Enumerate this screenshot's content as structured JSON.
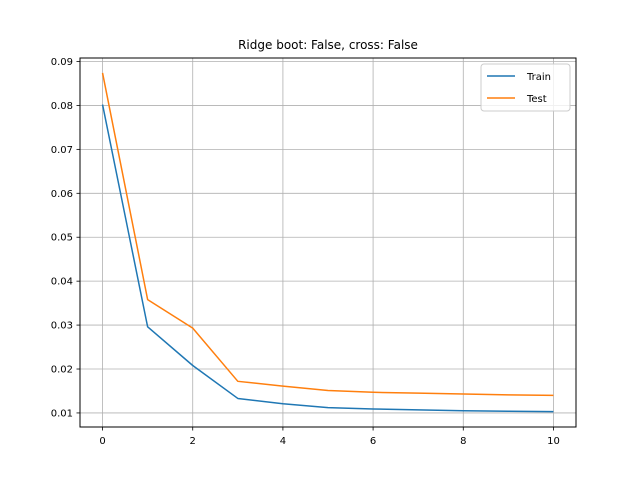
{
  "chart_data": {
    "type": "line",
    "title": "Ridge boot: False, cross: False",
    "xlabel": "",
    "ylabel": "",
    "xlim": [
      -0.5,
      10.5
    ],
    "ylim": [
      0.0068,
      0.0908
    ],
    "xticks": [
      0,
      2,
      4,
      6,
      8,
      10
    ],
    "xtick_labels": [
      "0",
      "2",
      "4",
      "6",
      "8",
      "10"
    ],
    "yticks": [
      0.01,
      0.02,
      0.03,
      0.04,
      0.05,
      0.06,
      0.07,
      0.08,
      0.09
    ],
    "ytick_labels": [
      "0.01",
      "0.02",
      "0.03",
      "0.04",
      "0.05",
      "0.06",
      "0.07",
      "0.08",
      "0.09"
    ],
    "grid": true,
    "legend_position": "top-right",
    "x": [
      0,
      1,
      2,
      3,
      4,
      5,
      6,
      7,
      8,
      9,
      10
    ],
    "series": [
      {
        "name": "Train",
        "color": "#1f77b4",
        "values": [
          0.0802,
          0.0296,
          0.0208,
          0.0133,
          0.0121,
          0.0112,
          0.0109,
          0.0107,
          0.0105,
          0.0104,
          0.0103
        ]
      },
      {
        "name": "Test",
        "color": "#ff7f0e",
        "values": [
          0.0874,
          0.0358,
          0.0293,
          0.0172,
          0.0161,
          0.0151,
          0.0147,
          0.0145,
          0.0143,
          0.0141,
          0.014
        ]
      }
    ]
  }
}
